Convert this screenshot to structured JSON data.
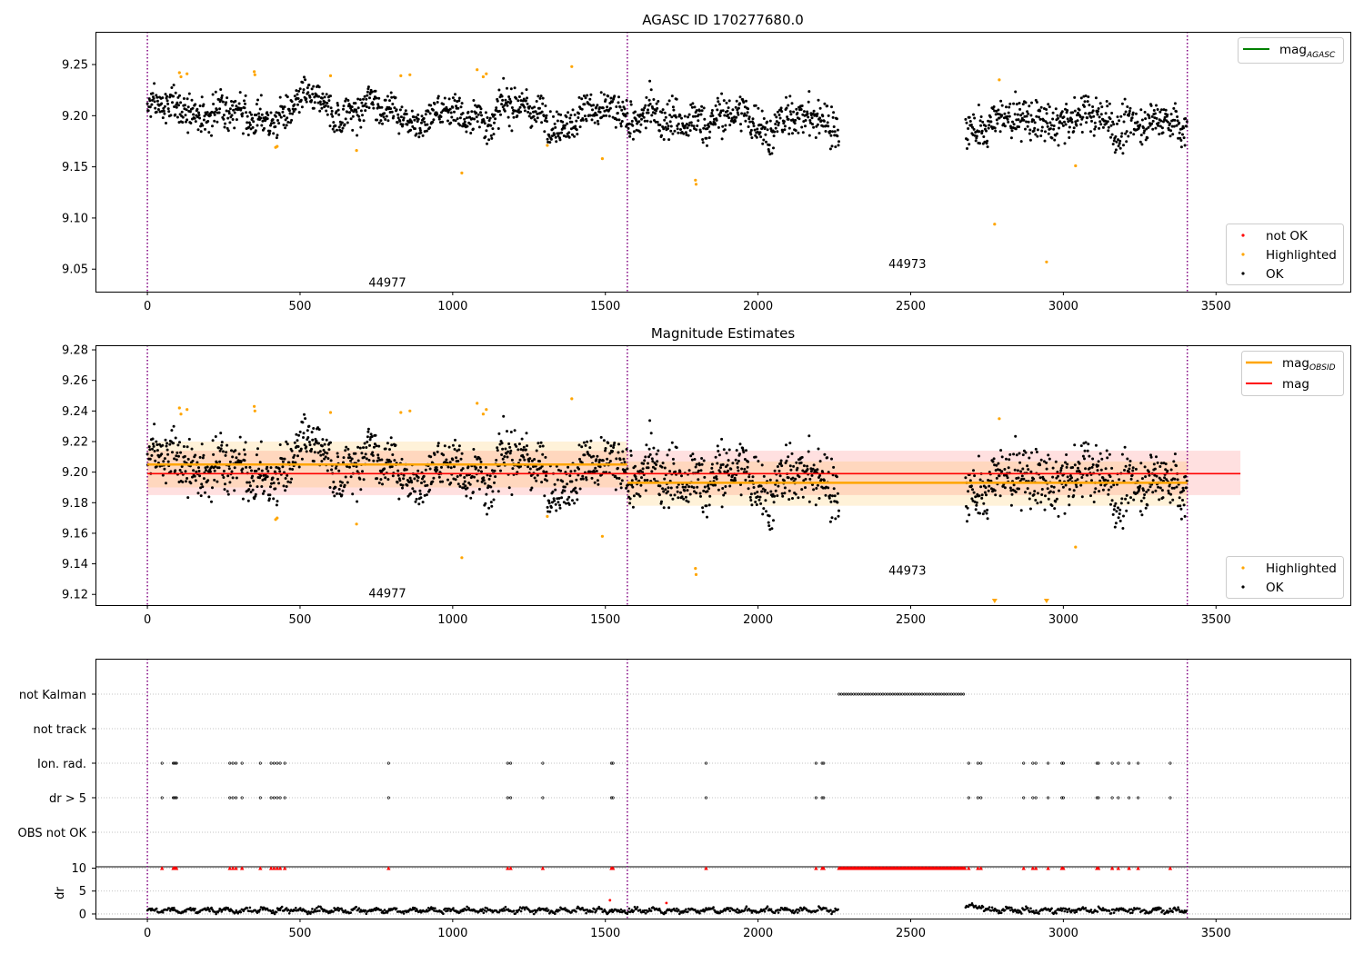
{
  "chart_data": [
    {
      "type": "scatter",
      "title": "AGASC ID 170277680.0",
      "xlim": [
        -170,
        3940
      ],
      "ylim": [
        9.028,
        9.282
      ],
      "xticks": [
        0,
        500,
        1000,
        1500,
        2000,
        2500,
        3000,
        3500
      ],
      "yticks": [
        9.05,
        9.1,
        9.15,
        9.2,
        9.25
      ],
      "vlines": [
        0,
        1572,
        3406
      ],
      "observation_labels": [
        {
          "text": "44977",
          "x": 786,
          "y": 9.033
        },
        {
          "text": "44973",
          "x": 2489,
          "y": 9.051
        }
      ],
      "legend_lines": [
        {
          "label": "mag_AGASC",
          "color": "#008000"
        }
      ],
      "legend_points": [
        {
          "label": "not OK",
          "color": "#ff0000"
        },
        {
          "label": "Highlighted",
          "color": "#ffa500"
        },
        {
          "label": "OK",
          "color": "#000000"
        }
      ],
      "series": [
        {
          "name": "OK",
          "color": "#000000",
          "segments": [
            {
              "x": [
                0,
                1572
              ],
              "mean": 9.205,
              "sd": 0.011
            },
            {
              "x": [
                1572,
                2265
              ],
              "mean": 9.195,
              "sd": 0.013
            },
            {
              "x": [
                2680,
                3406
              ],
              "mean": 9.193,
              "sd": 0.013
            }
          ]
        },
        {
          "name": "Highlighted",
          "color": "#ffa500",
          "points": [
            [
              105,
              9.242
            ],
            [
              110,
              9.238
            ],
            [
              130,
              9.241
            ],
            [
              350,
              9.243
            ],
            [
              352,
              9.24
            ],
            [
              420,
              9.169
            ],
            [
              425,
              9.17
            ],
            [
              600,
              9.239
            ],
            [
              685,
              9.166
            ],
            [
              830,
              9.239
            ],
            [
              860,
              9.24
            ],
            [
              1030,
              9.144
            ],
            [
              1080,
              9.245
            ],
            [
              1100,
              9.238
            ],
            [
              1110,
              9.241
            ],
            [
              1310,
              9.171
            ],
            [
              1390,
              9.248
            ],
            [
              1490,
              9.158
            ],
            [
              1795,
              9.137
            ],
            [
              1797,
              9.133
            ],
            [
              2775,
              9.094
            ],
            [
              2790,
              9.235
            ],
            [
              2945,
              9.057
            ],
            [
              3040,
              9.151
            ]
          ]
        }
      ]
    },
    {
      "type": "scatter",
      "title": "Magnitude Estimates",
      "xlim": [
        -170,
        3940
      ],
      "ylim": [
        9.113,
        9.283
      ],
      "xticks": [
        0,
        500,
        1000,
        1500,
        2000,
        2500,
        3000,
        3500
      ],
      "yticks": [
        9.12,
        9.14,
        9.16,
        9.18,
        9.2,
        9.22,
        9.24,
        9.26,
        9.28
      ],
      "vlines": [
        0,
        1572,
        3406
      ],
      "observation_labels": [
        {
          "text": "44977",
          "x": 786,
          "y": 9.118
        },
        {
          "text": "44973",
          "x": 2489,
          "y": 9.133
        }
      ],
      "mag": {
        "value": 9.199,
        "band": [
          9.185,
          9.214
        ],
        "x": [
          0,
          3580
        ],
        "color": "#ff0000"
      },
      "mag_obsid": [
        {
          "x": [
            0,
            1572
          ],
          "value": 9.205,
          "band": [
            9.19,
            9.22
          ]
        },
        {
          "x": [
            1572,
            3406
          ],
          "value": 9.193,
          "band": [
            9.178,
            9.207
          ]
        }
      ],
      "legend_lines": [
        {
          "label": "mag_OBSID",
          "color": "#ffa500"
        },
        {
          "label": "mag",
          "color": "#ff0000"
        }
      ],
      "legend_points": [
        {
          "label": "Highlighted",
          "color": "#ffa500"
        },
        {
          "label": "OK",
          "color": "#000000"
        }
      ],
      "clipped_points": [
        2775,
        2945
      ]
    },
    {
      "type": "scatter",
      "title": "",
      "xlim": [
        -170,
        3940
      ],
      "xticks": [
        0,
        500,
        1000,
        1500,
        2000,
        2500,
        3000,
        3500
      ],
      "vlines": [
        0,
        1572,
        3406
      ],
      "flag_rows": [
        "not Kalman",
        "not track",
        "Ion. rad.",
        "dr > 5",
        "OBS not OK"
      ],
      "flags": {
        "not Kalman": {
          "ranges": [
            [
              2265,
              2680
            ]
          ],
          "points": []
        },
        "not track": {
          "ranges": [],
          "points": []
        },
        "Ion. rad.": {
          "ranges": [],
          "points": [
            48,
            85,
            88,
            92,
            95,
            270,
            280,
            290,
            310,
            370,
            405,
            415,
            425,
            435,
            450,
            790,
            1180,
            1190,
            1295,
            1520,
            1525,
            1830,
            2190,
            2210,
            2215,
            2690,
            2720,
            2730,
            2870,
            2900,
            2910,
            2950,
            2995,
            3000,
            3110,
            3115,
            3160,
            3180,
            3215,
            3245,
            3350
          ]
        },
        "dr > 5": {
          "ranges": [],
          "points": [
            48,
            85,
            88,
            92,
            95,
            270,
            280,
            290,
            310,
            370,
            405,
            415,
            425,
            435,
            450,
            790,
            1180,
            1190,
            1295,
            1520,
            1525,
            1830,
            2190,
            2210,
            2215,
            2690,
            2720,
            2730,
            2870,
            2900,
            2910,
            2950,
            2995,
            3000,
            3110,
            3115,
            3160,
            3180,
            3215,
            3245,
            3350
          ]
        },
        "OBS not OK": {
          "ranges": [],
          "points": []
        }
      },
      "dr": {
        "ylabel": "dr",
        "yticks": [
          0,
          5,
          10
        ],
        "ylim": [
          -1,
          10.3
        ],
        "clip_value": 10,
        "level": 0.8,
        "segments": [
          [
            0,
            2265
          ],
          [
            2680,
            3406
          ]
        ],
        "outliers": [
          [
            1515,
            3
          ],
          [
            1700,
            2.4
          ]
        ]
      }
    }
  ]
}
